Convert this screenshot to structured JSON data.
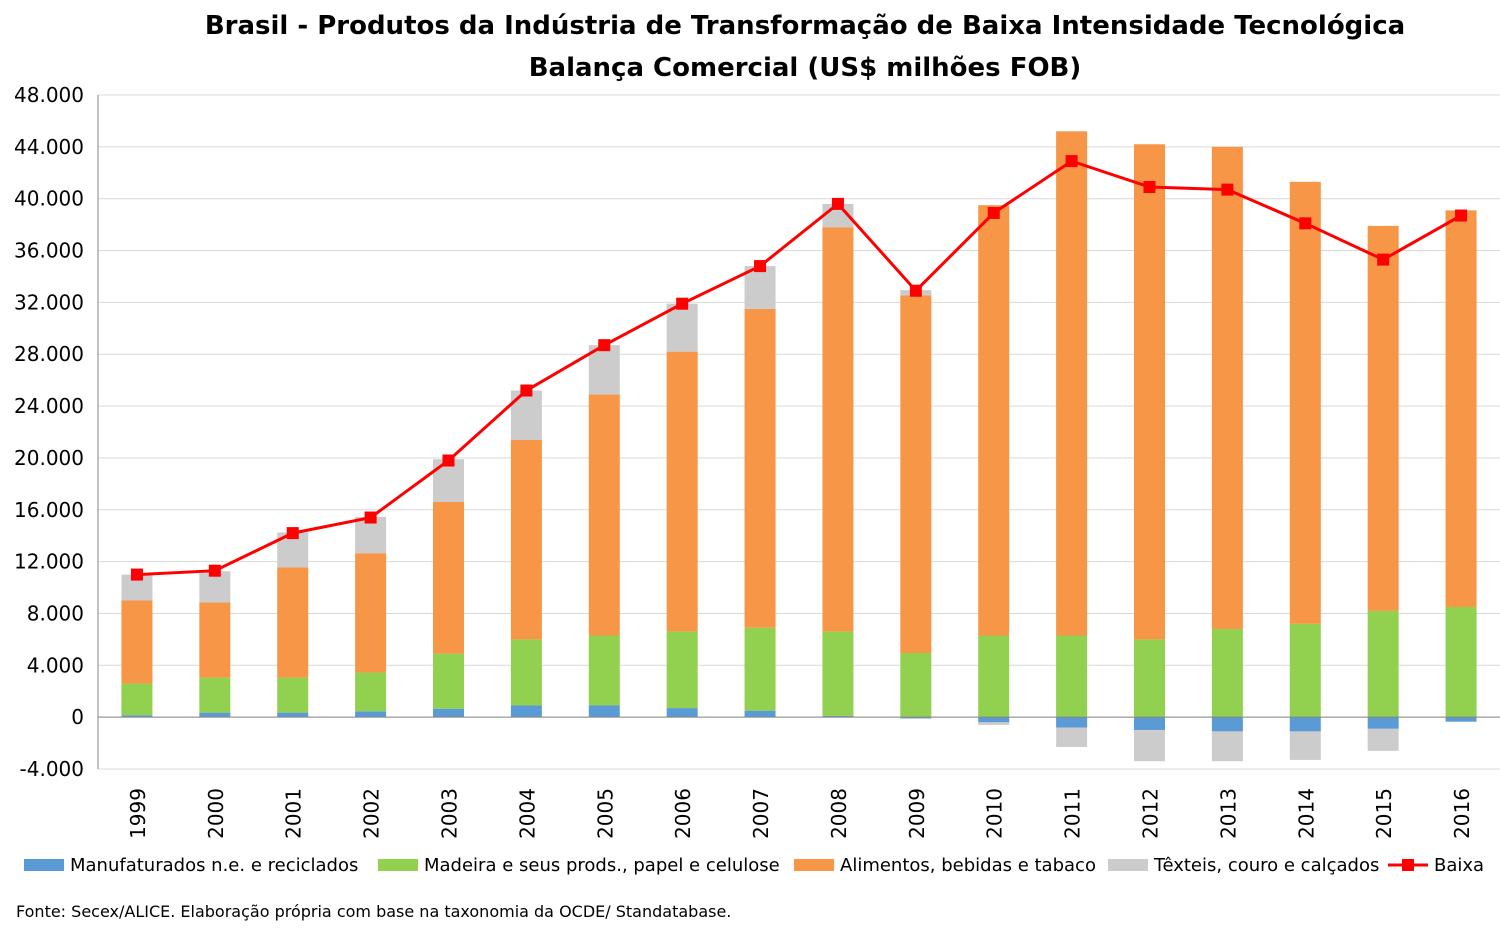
{
  "chart_data": {
    "type": "bar",
    "stacked": true,
    "title": "Brasil - Produtos da Indústria de Transformação de Baixa Intensidade Tecnológica",
    "subtitle": "Balança Comercial (US$ milhões FOB)",
    "ylim": [
      -4000,
      48000
    ],
    "yticks": [
      "48.000",
      "44.000",
      "40.000",
      "36.000",
      "32.000",
      "28.000",
      "24.000",
      "20.000",
      "16.000",
      "12.000",
      "8.000",
      "4.000",
      "0",
      "-4.000"
    ],
    "ytick_values": [
      48000,
      44000,
      40000,
      36000,
      32000,
      28000,
      24000,
      20000,
      16000,
      12000,
      8000,
      4000,
      0,
      -4000
    ],
    "grid": true,
    "legend_position": "bottom",
    "categories": [
      "1999",
      "2000",
      "2001",
      "2002",
      "2003",
      "2004",
      "2005",
      "2006",
      "2007",
      "2008",
      "2009",
      "2010",
      "2011",
      "2012",
      "2013",
      "2014",
      "2015",
      "2016"
    ],
    "series": [
      {
        "name": "Manufaturados n.e. e reciclados",
        "color": "#5b9bd5",
        "values": [
          150,
          350,
          350,
          450,
          650,
          900,
          900,
          700,
          500,
          100,
          -100,
          -400,
          -800,
          -1000,
          -1100,
          -1100,
          -900,
          -350
        ]
      },
      {
        "name": "Madeira e seus prods., papel e celulose",
        "color": "#92d050",
        "values": [
          2450,
          2700,
          2700,
          3000,
          4250,
          5100,
          5400,
          5900,
          6400,
          6500,
          4950,
          6300,
          6300,
          6000,
          6800,
          7200,
          8200,
          8500
        ]
      },
      {
        "name": "Alimentos, bebidas e tabaco",
        "color": "#f79646",
        "values": [
          6400,
          5800,
          8500,
          9200,
          11700,
          15400,
          18600,
          21600,
          24600,
          31200,
          27600,
          33200,
          38900,
          38200,
          37200,
          34100,
          29700,
          30600
        ]
      },
      {
        "name": "Têxteis, couro e calçados",
        "color": "#cccccc",
        "values": [
          2000,
          2400,
          2700,
          2800,
          3300,
          3800,
          3800,
          3700,
          3300,
          1800,
          400,
          -200,
          -1500,
          -2400,
          -2300,
          -2200,
          -1700,
          0
        ]
      }
    ],
    "line": {
      "name": "Baixa",
      "color": "#ff0000",
      "values": [
        11000,
        11300,
        14200,
        15400,
        19800,
        25200,
        28700,
        31900,
        34800,
        39600,
        32900,
        38900,
        42900,
        40900,
        40700,
        38100,
        35300,
        38700
      ]
    },
    "source": "Fonte: Secex/ALICE. Elaboração própria com base na taxonomia da OCDE/ Standatabase."
  }
}
